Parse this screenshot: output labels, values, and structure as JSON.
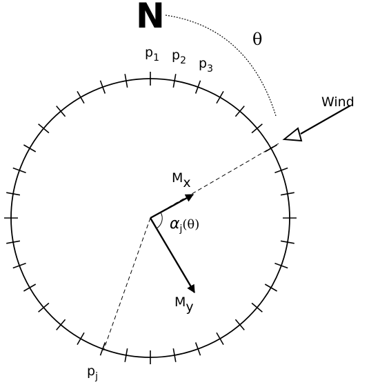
{
  "north": "N",
  "angle": "θ",
  "wind": "Wind",
  "points": [
    {
      "label": "p",
      "sub": "1"
    },
    {
      "label": "p",
      "sub": "2"
    },
    {
      "label": "p",
      "sub": "3"
    },
    {
      "label": "p",
      "sub": "j"
    }
  ],
  "moments": [
    {
      "label": "M",
      "sub": "x"
    },
    {
      "label": "M",
      "sub": "y"
    }
  ],
  "angle_alpha": {
    "label": "α",
    "sub": "j",
    "suffix": "(θ)"
  }
}
